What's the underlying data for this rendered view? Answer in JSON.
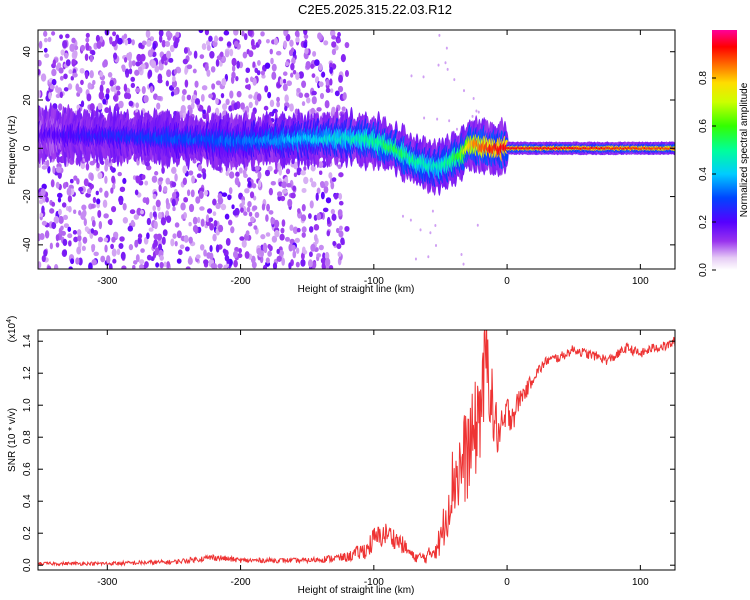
{
  "title": "C2E5.2025.315.22.03.R12",
  "chart_data": [
    {
      "type": "heatmap",
      "name": "spectrogram",
      "xlabel": "Height of straight line (km)",
      "ylabel": "Frequency (Hz)",
      "xlim": [
        -352,
        126
      ],
      "ylim": [
        -50,
        49
      ],
      "xticks": [
        -300,
        -200,
        -100,
        0,
        100
      ],
      "xtick_labels": [
        "-300",
        "-200",
        "-100",
        "0",
        "100"
      ],
      "yticks": [
        -40,
        -20,
        0,
        20,
        40
      ],
      "ytick_labels": [
        "-40",
        "-20",
        "0",
        "20",
        "40"
      ],
      "colorbar": {
        "label": "Normalized spectral amplitude",
        "range": [
          0.0,
          1.0
        ],
        "ticks": [
          0.0,
          0.2,
          0.4,
          0.6,
          0.8
        ],
        "tick_labels": [
          "0.0",
          "0.2",
          "0.4",
          "0.6",
          "0.8"
        ]
      },
      "noise_region": {
        "x_from": -352,
        "x_to": -120,
        "amplitude": 0.12
      },
      "ridge": {
        "x": [
          -352,
          -300,
          -250,
          -200,
          -150,
          -120,
          -100,
          -85,
          -70,
          -55,
          -45,
          -35,
          -28,
          -20,
          -12,
          -5,
          0,
          50,
          126
        ],
        "frequency": [
          6,
          5,
          4,
          3,
          4,
          4,
          3,
          0,
          -5,
          -8,
          -6,
          -3,
          2,
          1,
          0,
          0,
          0,
          0,
          0
        ],
        "amplitude": [
          0.18,
          0.25,
          0.3,
          0.32,
          0.4,
          0.45,
          0.5,
          0.55,
          0.5,
          0.45,
          0.5,
          0.6,
          0.8,
          0.85,
          0.9,
          0.92,
          0.92,
          0.92,
          0.88
        ]
      }
    },
    {
      "type": "line",
      "name": "snr",
      "xlabel": "Height of straight line (km)",
      "ylabel": "SNR (10 * v/v)",
      "y_scale_label": "(x10",
      "y_scale_exponent": "4",
      "y_scale_suffix": ")",
      "xlim": [
        -352,
        126
      ],
      "ylim": [
        -0.03,
        1.47
      ],
      "xticks": [
        -300,
        -200,
        -100,
        0,
        100
      ],
      "xtick_labels": [
        "-300",
        "-200",
        "-100",
        "0",
        "100"
      ],
      "yticks": [
        0.0,
        0.2,
        0.4,
        0.6,
        0.8,
        1.0,
        1.2,
        1.4
      ],
      "ytick_labels": [
        "0.0",
        "0.2",
        "0.4",
        "0.6",
        "0.8",
        "1.0",
        "1.2",
        "1.4"
      ],
      "series": [
        {
          "name": "SNR",
          "color": "#ee3333",
          "x": [
            -352,
            -300,
            -250,
            -220,
            -200,
            -150,
            -120,
            -105,
            -100,
            -90,
            -80,
            -70,
            -60,
            -50,
            -45,
            -40,
            -35,
            -30,
            -25,
            -20,
            -15,
            -10,
            -5,
            0,
            5,
            10,
            15,
            20,
            25,
            30,
            40,
            50,
            60,
            70,
            75,
            80,
            90,
            100,
            110,
            120,
            126
          ],
          "y": [
            0.01,
            0.01,
            0.02,
            0.05,
            0.03,
            0.03,
            0.05,
            0.1,
            0.16,
            0.2,
            0.14,
            0.05,
            0.05,
            0.15,
            0.35,
            0.55,
            0.6,
            0.7,
            0.8,
            1.0,
            1.3,
            0.9,
            0.8,
            0.95,
            0.95,
            1.05,
            1.1,
            1.18,
            1.23,
            1.28,
            1.3,
            1.35,
            1.32,
            1.3,
            1.28,
            1.3,
            1.36,
            1.32,
            1.36,
            1.37,
            1.4
          ],
          "noise": [
            0.01,
            0.012,
            0.015,
            0.02,
            0.015,
            0.015,
            0.03,
            0.06,
            0.08,
            0.07,
            0.06,
            0.03,
            0.04,
            0.1,
            0.18,
            0.25,
            0.3,
            0.3,
            0.3,
            0.35,
            0.3,
            0.2,
            0.15,
            0.12,
            0.1,
            0.06,
            0.05,
            0.04,
            0.035,
            0.03,
            0.03,
            0.03,
            0.03,
            0.03,
            0.03,
            0.03,
            0.03,
            0.03,
            0.03,
            0.03,
            0.03
          ]
        }
      ]
    }
  ]
}
